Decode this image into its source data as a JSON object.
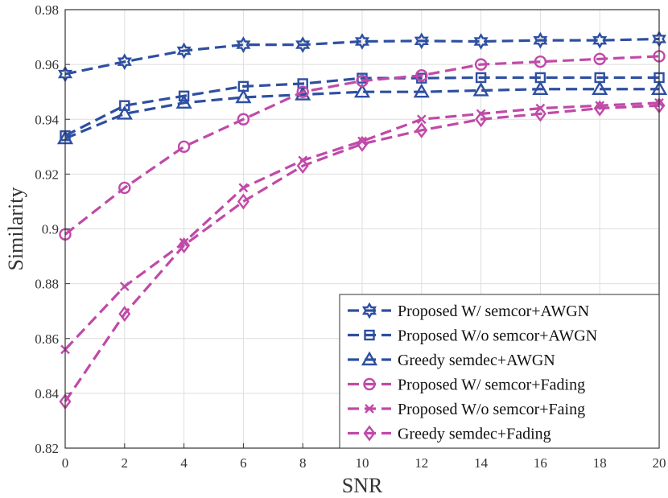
{
  "chart_data": {
    "type": "line",
    "title": "",
    "xlabel": "SNR",
    "ylabel": "Similarity",
    "xlim": [
      0,
      20
    ],
    "ylim": [
      0.82,
      0.98
    ],
    "grid": true,
    "legend_position": "bottom-right",
    "x": [
      0,
      2,
      4,
      6,
      8,
      10,
      12,
      14,
      16,
      18,
      20
    ],
    "x_ticks": [
      "0",
      "2",
      "4",
      "6",
      "8",
      "10",
      "12",
      "14",
      "16",
      "18",
      "20"
    ],
    "y_ticks": [
      "0.82",
      "0.84",
      "0.86",
      "0.88",
      "0.9",
      "0.92",
      "0.94",
      "0.96",
      "0.98"
    ],
    "colors": {
      "blue": "#2e4fa1",
      "magenta": "#c04aa8"
    },
    "series": [
      {
        "name": "Proposed W/ semcor+AWGN",
        "color": "#2e4fa1",
        "marker": "hexagram",
        "values": [
          0.9565,
          0.961,
          0.965,
          0.9672,
          0.9672,
          0.9684,
          0.9686,
          0.9684,
          0.9688,
          0.9688,
          0.9693
        ]
      },
      {
        "name": "Proposed W/o semcor+AWGN",
        "color": "#2e4fa1",
        "marker": "square",
        "values": [
          0.934,
          0.945,
          0.9485,
          0.952,
          0.953,
          0.955,
          0.955,
          0.9552,
          0.9552,
          0.9552,
          0.9552
        ]
      },
      {
        "name": "Greedy semdec+AWGN",
        "color": "#2e4fa1",
        "marker": "triangle",
        "values": [
          0.933,
          0.942,
          0.946,
          0.948,
          0.949,
          0.95,
          0.95,
          0.9505,
          0.951,
          0.951,
          0.951
        ]
      },
      {
        "name": "Proposed W/ semcor+Fading",
        "color": "#c04aa8",
        "marker": "circle",
        "values": [
          0.898,
          0.915,
          0.93,
          0.94,
          0.95,
          0.954,
          0.956,
          0.96,
          0.961,
          0.962,
          0.963
        ]
      },
      {
        "name": "Proposed W/o semcor+Faing",
        "color": "#c04aa8",
        "marker": "x",
        "values": [
          0.856,
          0.879,
          0.895,
          0.915,
          0.925,
          0.932,
          0.94,
          0.942,
          0.944,
          0.945,
          0.946
        ]
      },
      {
        "name": "Greedy semdec+Fading",
        "color": "#c04aa8",
        "marker": "diamond",
        "values": [
          0.837,
          0.869,
          0.894,
          0.91,
          0.923,
          0.931,
          0.936,
          0.94,
          0.942,
          0.944,
          0.945
        ]
      }
    ]
  }
}
